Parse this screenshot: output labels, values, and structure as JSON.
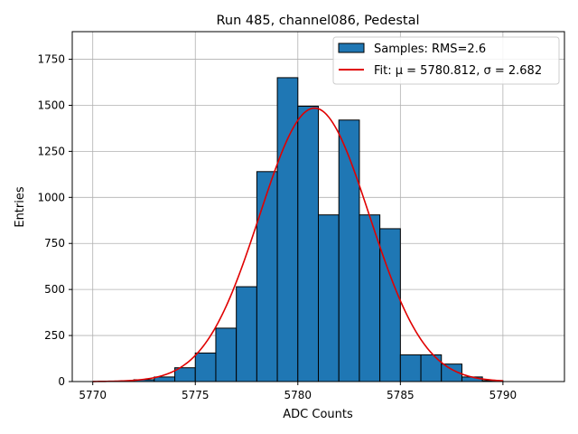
{
  "chart_data": {
    "type": "bar",
    "title": "Run 485, channel086, Pedestal",
    "xlabel": "ADC Counts",
    "ylabel": "Entries",
    "xlim": [
      5769,
      5793
    ],
    "ylim": [
      0,
      1900
    ],
    "xticks": [
      5770,
      5775,
      5780,
      5785,
      5790
    ],
    "yticks": [
      0,
      250,
      500,
      750,
      1000,
      1250,
      1500,
      1750
    ],
    "grid": true,
    "legend_position": "top-right",
    "bin_width": 1,
    "bins": [
      {
        "x0": 5772,
        "count": 10
      },
      {
        "x0": 5773,
        "count": 25
      },
      {
        "x0": 5774,
        "count": 75
      },
      {
        "x0": 5775,
        "count": 155
      },
      {
        "x0": 5776,
        "count": 290
      },
      {
        "x0": 5777,
        "count": 515
      },
      {
        "x0": 5778,
        "count": 1140
      },
      {
        "x0": 5779,
        "count": 1650
      },
      {
        "x0": 5780,
        "count": 1495
      },
      {
        "x0": 5781,
        "count": 905
      },
      {
        "x0": 5782,
        "count": 1420
      },
      {
        "x0": 5783,
        "count": 905
      },
      {
        "x0": 5784,
        "count": 830
      },
      {
        "x0": 5785,
        "count": 145
      },
      {
        "x0": 5786,
        "count": 145
      },
      {
        "x0": 5787,
        "count": 95
      },
      {
        "x0": 5788,
        "count": 25
      },
      {
        "x0": 5789,
        "count": 5
      }
    ],
    "fit": {
      "type": "gaussian",
      "mu": 5780.812,
      "sigma": 2.682,
      "amplitude": 1485,
      "x_range": [
        5770,
        5790
      ]
    },
    "series": [
      {
        "name": "Samples: RMS=2.6",
        "kind": "histogram",
        "color": "#1f77b4"
      },
      {
        "name": "Fit: μ = 5780.812, σ = 2.682",
        "kind": "line",
        "color": "#e00000"
      }
    ]
  }
}
